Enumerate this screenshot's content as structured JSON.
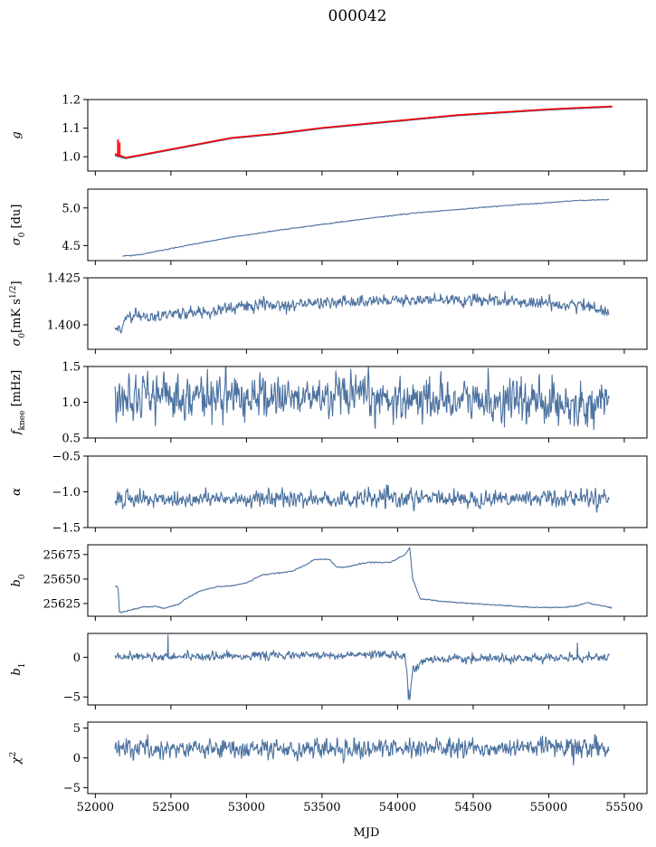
{
  "figure": {
    "title": "000042",
    "xlabel": "MJD"
  },
  "colors": {
    "series": "#4c72a0",
    "model": "#ff0000",
    "frame": "#000000"
  },
  "chart_data": [
    {
      "type": "line",
      "id": "g",
      "ylabel": "g",
      "ylabel_math": [
        {
          "t": "g",
          "i": true
        }
      ],
      "xlim": [
        51950,
        55650
      ],
      "ylim": [
        0.95,
        1.2
      ],
      "yticks": [
        1.0,
        1.1,
        1.2
      ],
      "yticklabels": [
        "1.0",
        "1.1",
        "1.2"
      ],
      "x_range": [
        52130,
        55420
      ],
      "series": [
        {
          "kind": "data",
          "color": "#4c72a0",
          "points": [
            [
              52130,
              1.005
            ],
            [
              52200,
              0.995
            ],
            [
              52300,
              1.005
            ],
            [
              52500,
              1.025
            ],
            [
              52700,
              1.045
            ],
            [
              52900,
              1.065
            ],
            [
              53200,
              1.08
            ],
            [
              53500,
              1.1
            ],
            [
              53800,
              1.115
            ],
            [
              54100,
              1.13
            ],
            [
              54400,
              1.145
            ],
            [
              54700,
              1.155
            ],
            [
              55000,
              1.165
            ],
            [
              55200,
              1.17
            ],
            [
              55420,
              1.175
            ]
          ]
        },
        {
          "kind": "fit",
          "color": "#ff0000",
          "points": [
            [
              52130,
              1.01
            ],
            [
              52200,
              0.997
            ],
            [
              52300,
              1.006
            ],
            [
              52500,
              1.026
            ],
            [
              52700,
              1.046
            ],
            [
              52900,
              1.066
            ],
            [
              53200,
              1.081
            ],
            [
              53500,
              1.101
            ],
            [
              53800,
              1.116
            ],
            [
              54100,
              1.131
            ],
            [
              54400,
              1.146
            ],
            [
              54700,
              1.156
            ],
            [
              55000,
              1.166
            ],
            [
              55200,
              1.171
            ],
            [
              55420,
              1.176
            ]
          ]
        }
      ],
      "spike": {
        "x": 52150,
        "from": 1.0,
        "to": 1.06
      }
    },
    {
      "type": "line",
      "id": "sigma0",
      "ylabel": "σ0 [du]",
      "ylabel_math": [
        {
          "t": "σ",
          "i": true
        },
        {
          "t": "0",
          "sub": true
        },
        {
          "t": " [du]"
        }
      ],
      "xlim": [
        51950,
        55650
      ],
      "ylim": [
        4.3,
        5.25
      ],
      "yticks": [
        4.5,
        5.0
      ],
      "yticklabels": [
        "4.5",
        "5.0"
      ],
      "x_range": [
        52180,
        55400
      ],
      "noise": 0.004,
      "points": [
        [
          52180,
          4.36
        ],
        [
          52300,
          4.38
        ],
        [
          52600,
          4.5
        ],
        [
          52900,
          4.61
        ],
        [
          53200,
          4.7
        ],
        [
          53500,
          4.78
        ],
        [
          53800,
          4.86
        ],
        [
          54100,
          4.93
        ],
        [
          54400,
          4.98
        ],
        [
          54700,
          5.03
        ],
        [
          55000,
          5.07
        ],
        [
          55200,
          5.1
        ],
        [
          55400,
          5.11
        ]
      ]
    },
    {
      "type": "line",
      "id": "sigma0phys",
      "ylabel": "σ0 [mK s^1/2]",
      "ylabel_math": [
        {
          "t": "σ",
          "i": true
        },
        {
          "t": "0",
          "sub": true
        },
        {
          "t": "[mK s"
        },
        {
          "t": "1/2",
          "sup": true
        },
        {
          "t": "]"
        }
      ],
      "xlim": [
        51950,
        55650
      ],
      "ylim": [
        1.387,
        1.425
      ],
      "yticks": [
        1.4,
        1.425
      ],
      "yticklabels": [
        "1.400",
        "1.425"
      ],
      "x_range": [
        52130,
        55400
      ],
      "noise": 0.0022,
      "points": [
        [
          52130,
          1.399
        ],
        [
          52170,
          1.396
        ],
        [
          52200,
          1.404
        ],
        [
          52400,
          1.405
        ],
        [
          52700,
          1.407
        ],
        [
          53000,
          1.41
        ],
        [
          53300,
          1.411
        ],
        [
          53600,
          1.412
        ],
        [
          53900,
          1.413
        ],
        [
          54200,
          1.413
        ],
        [
          54500,
          1.413
        ],
        [
          54800,
          1.412
        ],
        [
          55100,
          1.411
        ],
        [
          55300,
          1.41
        ],
        [
          55400,
          1.405
        ]
      ]
    },
    {
      "type": "line",
      "id": "fknee",
      "ylabel": "f_knee [mHz]",
      "ylabel_math": [
        {
          "t": "f",
          "i": true
        },
        {
          "t": "knee",
          "sub": true
        },
        {
          "t": " [mHz]"
        }
      ],
      "xlim": [
        51950,
        55650
      ],
      "ylim": [
        0.5,
        1.5
      ],
      "yticks": [
        0.5,
        1.0,
        1.5
      ],
      "yticklabels": [
        "0.5",
        "1.0",
        "1.5"
      ],
      "x_range": [
        52130,
        55400
      ],
      "noise": 0.2,
      "points": [
        [
          52130,
          1.15
        ],
        [
          52300,
          1.1
        ],
        [
          52800,
          1.07
        ],
        [
          53500,
          1.06
        ],
        [
          54200,
          1.04
        ],
        [
          55000,
          1.0
        ],
        [
          55400,
          0.95
        ]
      ]
    },
    {
      "type": "line",
      "id": "alpha",
      "ylabel": "α",
      "ylabel_math": [
        {
          "t": "α",
          "i": true
        }
      ],
      "xlim": [
        51950,
        55650
      ],
      "ylim": [
        -1.5,
        -0.5
      ],
      "yticks": [
        -1.5,
        -1.0,
        -0.5
      ],
      "yticklabels": [
        "−1.5",
        "−1.0",
        "−0.5"
      ],
      "x_range": [
        52130,
        55400
      ],
      "noise": 0.08,
      "points": [
        [
          52130,
          -1.1
        ],
        [
          53000,
          -1.1
        ],
        [
          54000,
          -1.1
        ],
        [
          55400,
          -1.08
        ]
      ]
    },
    {
      "type": "line",
      "id": "b0",
      "ylabel": "b0",
      "ylabel_math": [
        {
          "t": "b",
          "i": true
        },
        {
          "t": "0",
          "sub": true
        }
      ],
      "xlim": [
        51950,
        55650
      ],
      "ylim": [
        25612,
        25685
      ],
      "yticks": [
        25625,
        25650,
        25675
      ],
      "yticklabels": [
        "25625",
        "25650",
        "25675"
      ],
      "x_range": [
        52130,
        55420
      ],
      "noise": 0.4,
      "points": [
        [
          52130,
          25643
        ],
        [
          52150,
          25642
        ],
        [
          52160,
          25616
        ],
        [
          52200,
          25617
        ],
        [
          52300,
          25621
        ],
        [
          52400,
          25622
        ],
        [
          52450,
          25620
        ],
        [
          52550,
          25624
        ],
        [
          52600,
          25630
        ],
        [
          52700,
          25638
        ],
        [
          52800,
          25642
        ],
        [
          52900,
          25643
        ],
        [
          53000,
          25646
        ],
        [
          53100,
          25654
        ],
        [
          53200,
          25656
        ],
        [
          53300,
          25658
        ],
        [
          53400,
          25665
        ],
        [
          53450,
          25670
        ],
        [
          53550,
          25670
        ],
        [
          53600,
          25662
        ],
        [
          53650,
          25662
        ],
        [
          53800,
          25667
        ],
        [
          53950,
          25667
        ],
        [
          54050,
          25675
        ],
        [
          54080,
          25682
        ],
        [
          54100,
          25650
        ],
        [
          54150,
          25630
        ],
        [
          54300,
          25627
        ],
        [
          54500,
          25625
        ],
        [
          54700,
          25623
        ],
        [
          54900,
          25621
        ],
        [
          55100,
          25621
        ],
        [
          55200,
          25623
        ],
        [
          55250,
          25626
        ],
        [
          55300,
          25624
        ],
        [
          55420,
          25621
        ]
      ]
    },
    {
      "type": "line",
      "id": "b1",
      "ylabel": "b1",
      "ylabel_math": [
        {
          "t": "b",
          "i": true
        },
        {
          "t": "1",
          "sub": true
        }
      ],
      "xlim": [
        51950,
        55650
      ],
      "ylim": [
        -6,
        3
      ],
      "yticks": [
        -5,
        0
      ],
      "yticklabels": [
        "−5",
        "0"
      ],
      "x_range": [
        52130,
        55400
      ],
      "noise": 0.35,
      "points": [
        [
          52130,
          0.1
        ],
        [
          54050,
          0.3
        ],
        [
          54080,
          -5.2
        ],
        [
          54100,
          -1.5
        ],
        [
          54200,
          -0.3
        ],
        [
          55400,
          0.0
        ]
      ],
      "spikes": [
        [
          52480,
          2.8
        ],
        [
          54070,
          -5.3
        ],
        [
          55190,
          1.8
        ]
      ]
    },
    {
      "type": "line",
      "id": "chi2",
      "ylabel": "χ^2",
      "ylabel_math": [
        {
          "t": "χ",
          "i": true
        },
        {
          "t": "2",
          "sup": true
        }
      ],
      "xlim": [
        51950,
        55650
      ],
      "ylim": [
        -6,
        6
      ],
      "yticks": [
        -5,
        0,
        5
      ],
      "yticklabels": [
        "−5",
        "0",
        "5"
      ],
      "x_range": [
        52130,
        55400
      ],
      "noise": 1.1,
      "points": [
        [
          52130,
          1.5
        ],
        [
          53000,
          1.5
        ],
        [
          54000,
          1.6
        ],
        [
          55400,
          1.8
        ]
      ]
    }
  ],
  "xaxis": {
    "ticks": [
      52000,
      52500,
      53000,
      53500,
      54000,
      54500,
      55000,
      55500
    ],
    "ticklabels": [
      "52000",
      "52500",
      "53000",
      "53500",
      "54000",
      "54500",
      "55000",
      "55500"
    ]
  }
}
